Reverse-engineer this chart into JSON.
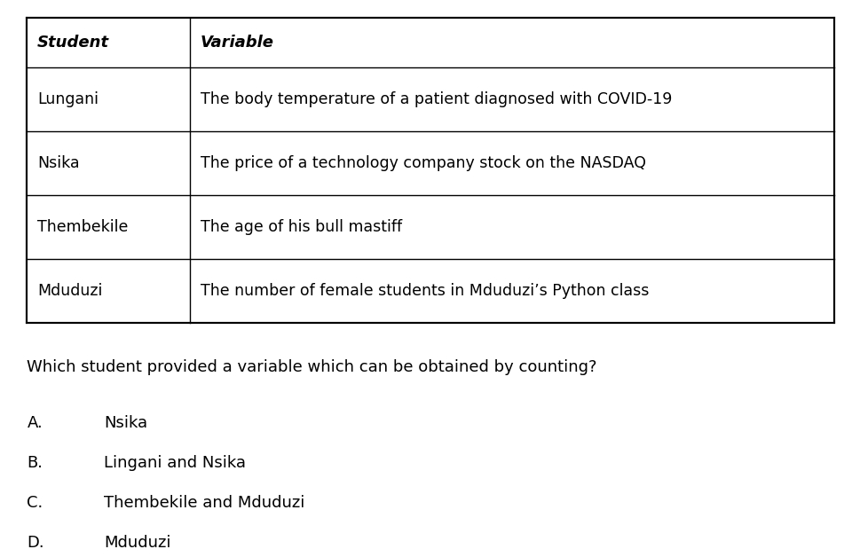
{
  "table_headers": [
    "Student",
    "Variable"
  ],
  "table_rows": [
    [
      "Lungani",
      "The body temperature of a patient diagnosed with COVID-19"
    ],
    [
      "Nsika",
      "The price of a technology company stock on the NASDAQ"
    ],
    [
      "Thembekile",
      "The age of his bull mastiff"
    ],
    [
      "Mduduzi",
      "The number of female students in Mduduzi’s Python class"
    ]
  ],
  "question": "Which student provided a variable which can be obtained by counting?",
  "options": [
    [
      "A.",
      "Nsika"
    ],
    [
      "B.",
      "Lingani and Nsika"
    ],
    [
      "C.",
      "Thembekile and Mduduzi"
    ],
    [
      "D.",
      "Mduduzi"
    ]
  ],
  "bg_color": "#ffffff",
  "text_color": "#000000",
  "table_border_color": "#000000",
  "header_font_size": 13,
  "cell_font_size": 12.5,
  "question_font_size": 13,
  "option_font_size": 13
}
